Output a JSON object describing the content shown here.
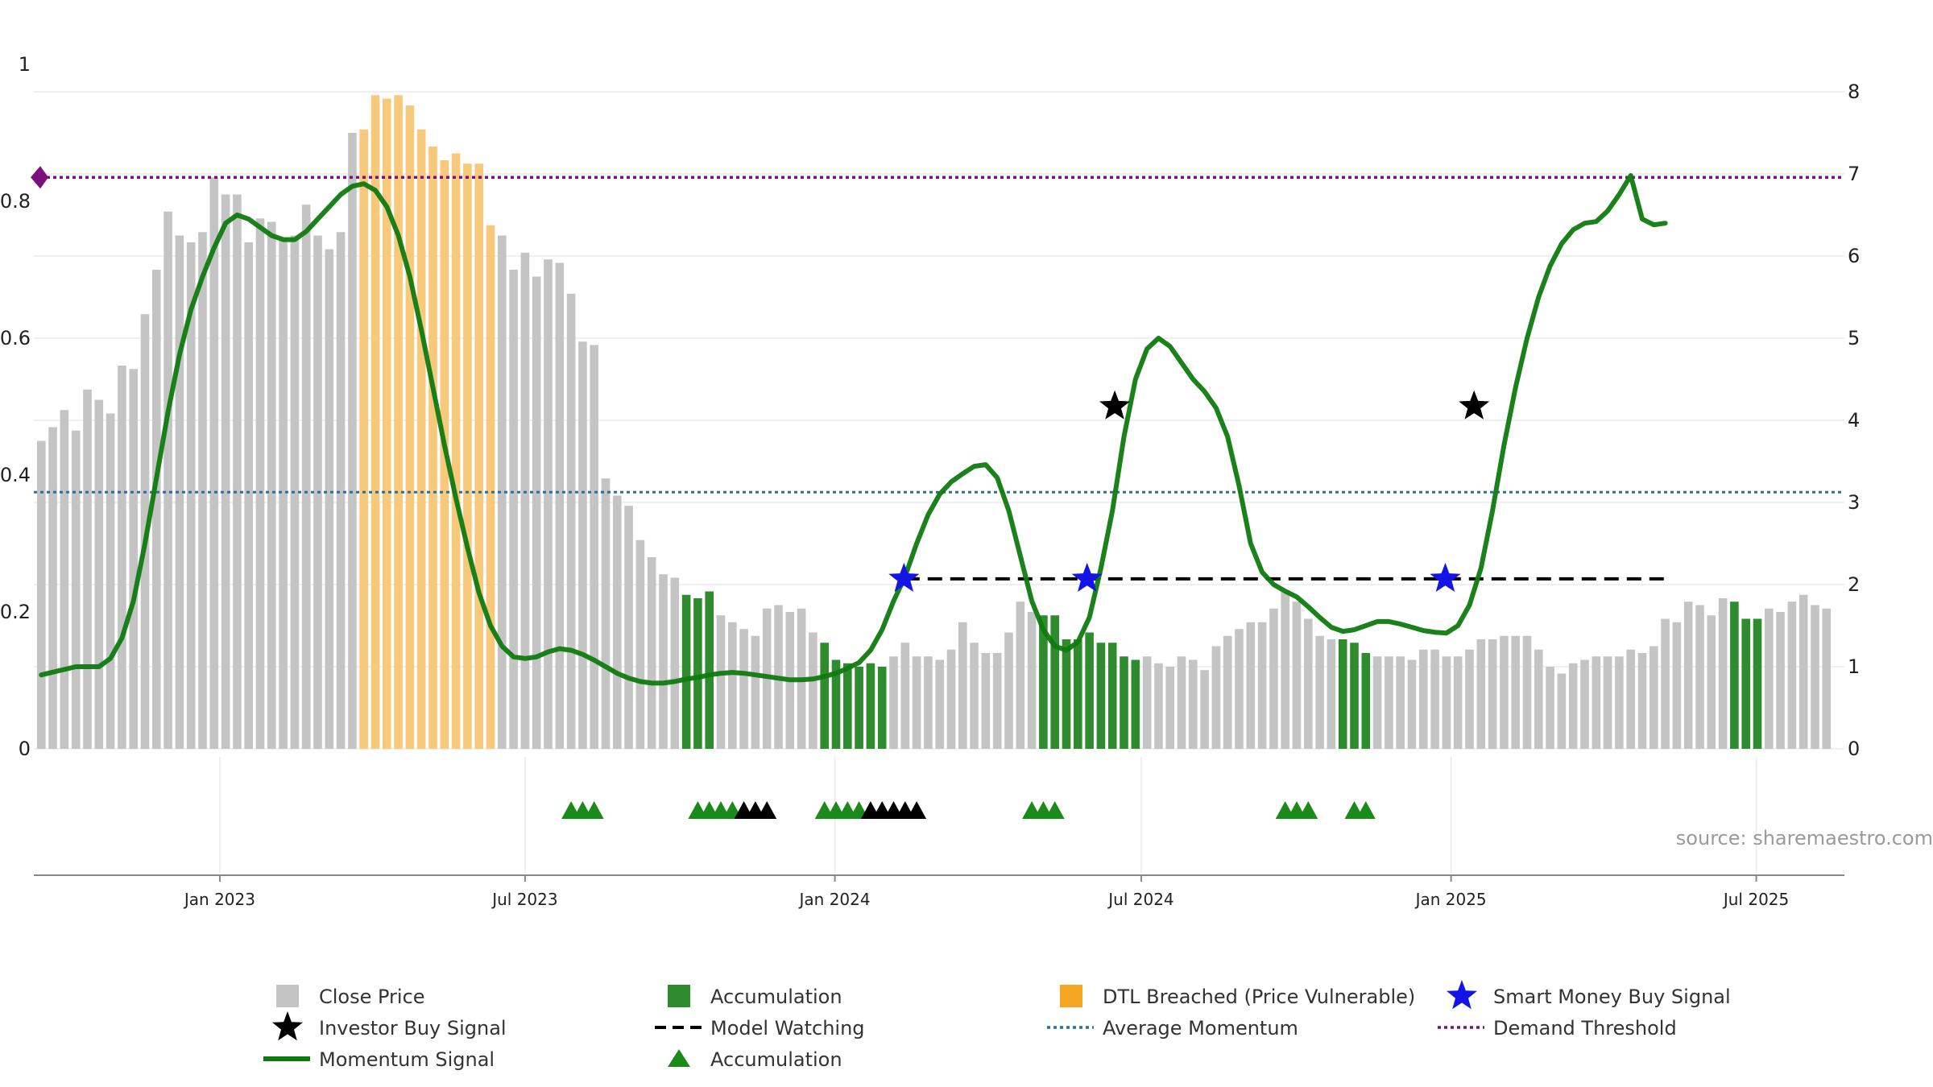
{
  "chart_data": {
    "type": "bar",
    "source": "source: sharemaestro.com",
    "x_ticks": [
      "Jan 2023",
      "Jul 2023",
      "Jan 2024",
      "Jul 2024",
      "Jan 2025",
      "Jul 2025"
    ],
    "x_tick_positions": [
      15.5,
      42,
      68.9,
      95.5,
      122.4,
      148.9
    ],
    "y_left": {
      "range": [
        0,
        1
      ],
      "ticks": [
        "0",
        "0.2",
        "0.4",
        "0.6",
        "0.8",
        "1"
      ]
    },
    "y_right": {
      "range": [
        0,
        8
      ],
      "ticks": [
        "0",
        "1",
        "2",
        "3",
        "4",
        "5",
        "6",
        "7",
        "8"
      ]
    },
    "grid": true,
    "legend_position": "bottom",
    "colors": {
      "close": "#c4c4c4",
      "accumulation": "#2e8b2e",
      "dtl": "#f8c97a",
      "momentum": "#0f7a0f",
      "smart_money": "#1414e6",
      "investor": "#000000",
      "model_watching": "#000000",
      "average_momentum": "#2a6f9e",
      "demand_threshold": "#7d0f7d",
      "accumulation_marker": "#1a8a1a"
    },
    "bar_colors": "GGGGGGGGGGGGGGGGGGGGGGGGGGGGOOOOOOOOOOOOGGGGGGGGGGGGGGGGAAAGGGGGGGGGAAAAAAGGGGGGGGGGGGGAAAAAAAAAGGGGGGGGGGGGGGGGGAAAGGGGGGGGGGGGGGGGGGGGGGGGGGGGGGGAAAGGGGGGGAAGGGGGGGGGGGGGGGGG",
    "close_price": [
      0.45,
      0.47,
      0.495,
      0.465,
      0.525,
      0.51,
      0.49,
      0.56,
      0.555,
      0.635,
      0.7,
      0.785,
      0.75,
      0.74,
      0.755,
      0.835,
      0.81,
      0.81,
      0.74,
      0.775,
      0.77,
      0.745,
      0.75,
      0.795,
      0.75,
      0.73,
      0.755,
      0.9,
      0.905,
      0.955,
      0.95,
      0.955,
      0.94,
      0.905,
      0.88,
      0.86,
      0.87,
      0.855,
      0.855,
      0.765,
      0.75,
      0.7,
      0.725,
      0.69,
      0.715,
      0.71,
      0.665,
      0.595,
      0.59,
      0.395,
      0.37,
      0.355,
      0.305,
      0.28,
      0.255,
      0.25,
      0.225,
      0.22,
      0.23,
      0.195,
      0.185,
      0.175,
      0.165,
      0.205,
      0.21,
      0.2,
      0.205,
      0.17,
      0.155,
      0.13,
      0.125,
      0.12,
      0.125,
      0.12,
      0.135,
      0.155,
      0.135,
      0.135,
      0.13,
      0.145,
      0.185,
      0.155,
      0.14,
      0.14,
      0.17,
      0.215,
      0.2,
      0.195,
      0.195,
      0.16,
      0.16,
      0.17,
      0.155,
      0.155,
      0.135,
      0.13,
      0.135,
      0.125,
      0.12,
      0.135,
      0.13,
      0.115,
      0.15,
      0.165,
      0.175,
      0.185,
      0.185,
      0.205,
      0.23,
      0.215,
      0.19,
      0.165,
      0.16,
      0.16,
      0.155,
      0.14,
      0.135,
      0.135,
      0.135,
      0.13,
      0.145,
      0.145,
      0.135,
      0.135,
      0.145,
      0.16,
      0.16,
      0.165,
      0.165,
      0.165,
      0.145,
      0.12,
      0.11,
      0.125,
      0.13,
      0.135,
      0.135,
      0.135,
      0.145,
      0.14,
      0.15,
      0.19,
      0.185,
      0.215,
      0.21,
      0.195,
      0.22,
      0.215,
      0.19,
      0.19,
      0.205,
      0.2,
      0.215,
      0.225,
      0.21,
      0.205
    ],
    "momentum": [
      [
        0,
        0.9
      ],
      [
        3,
        1.0
      ],
      [
        5,
        1.0
      ],
      [
        6,
        1.1
      ],
      [
        7,
        1.35
      ],
      [
        8,
        1.8
      ],
      [
        9,
        2.5
      ],
      [
        10,
        3.3
      ],
      [
        11,
        4.1
      ],
      [
        12,
        4.8
      ],
      [
        13,
        5.35
      ],
      [
        14,
        5.75
      ],
      [
        15,
        6.1
      ],
      [
        16,
        6.4
      ],
      [
        17,
        6.5
      ],
      [
        18,
        6.45
      ],
      [
        19,
        6.35
      ],
      [
        20,
        6.25
      ],
      [
        21,
        6.2
      ],
      [
        22,
        6.2
      ],
      [
        23,
        6.3
      ],
      [
        24,
        6.45
      ],
      [
        25,
        6.6
      ],
      [
        26,
        6.75
      ],
      [
        27,
        6.85
      ],
      [
        28,
        6.88
      ],
      [
        29,
        6.8
      ],
      [
        30,
        6.6
      ],
      [
        31,
        6.25
      ],
      [
        32,
        5.75
      ],
      [
        33,
        5.1
      ],
      [
        34,
        4.4
      ],
      [
        35,
        3.7
      ],
      [
        36,
        3.05
      ],
      [
        37,
        2.45
      ],
      [
        38,
        1.9
      ],
      [
        39,
        1.5
      ],
      [
        40,
        1.25
      ],
      [
        41,
        1.12
      ],
      [
        42,
        1.1
      ],
      [
        43,
        1.12
      ],
      [
        44,
        1.18
      ],
      [
        45,
        1.22
      ],
      [
        46,
        1.2
      ],
      [
        47,
        1.15
      ],
      [
        48,
        1.08
      ],
      [
        49,
        1.0
      ],
      [
        50,
        0.92
      ],
      [
        51,
        0.86
      ],
      [
        52,
        0.82
      ],
      [
        53,
        0.8
      ],
      [
        54,
        0.8
      ],
      [
        55,
        0.82
      ],
      [
        56,
        0.85
      ],
      [
        57,
        0.87
      ],
      [
        58,
        0.9
      ],
      [
        59,
        0.92
      ],
      [
        60,
        0.93
      ],
      [
        61,
        0.92
      ],
      [
        62,
        0.9
      ],
      [
        63,
        0.88
      ],
      [
        64,
        0.86
      ],
      [
        65,
        0.84
      ],
      [
        66,
        0.84
      ],
      [
        67,
        0.85
      ],
      [
        68,
        0.88
      ],
      [
        69,
        0.92
      ],
      [
        70,
        0.98
      ],
      [
        71,
        1.05
      ],
      [
        72,
        1.2
      ],
      [
        73,
        1.45
      ],
      [
        74,
        1.8
      ],
      [
        75,
        2.1
      ],
      [
        76,
        2.5
      ],
      [
        77,
        2.85
      ],
      [
        78,
        3.1
      ],
      [
        79,
        3.25
      ],
      [
        80,
        3.35
      ],
      [
        81,
        3.44
      ],
      [
        82,
        3.46
      ],
      [
        83,
        3.3
      ],
      [
        84,
        2.9
      ],
      [
        85,
        2.35
      ],
      [
        86,
        1.8
      ],
      [
        87,
        1.45
      ],
      [
        88,
        1.25
      ],
      [
        89,
        1.2
      ],
      [
        90,
        1.3
      ],
      [
        91,
        1.6
      ],
      [
        92,
        2.2
      ],
      [
        93,
        2.9
      ],
      [
        94,
        3.8
      ],
      [
        95,
        4.5
      ],
      [
        96,
        4.87
      ],
      [
        97,
        5.0
      ],
      [
        98,
        4.9
      ],
      [
        99,
        4.7
      ],
      [
        100,
        4.5
      ],
      [
        101,
        4.35
      ],
      [
        102,
        4.15
      ],
      [
        103,
        3.8
      ],
      [
        104,
        3.2
      ],
      [
        105,
        2.5
      ],
      [
        106,
        2.15
      ],
      [
        107,
        2.0
      ],
      [
        108,
        1.92
      ],
      [
        109,
        1.85
      ],
      [
        110,
        1.73
      ],
      [
        111,
        1.6
      ],
      [
        112,
        1.48
      ],
      [
        113,
        1.43
      ],
      [
        114,
        1.45
      ],
      [
        115,
        1.5
      ],
      [
        116,
        1.55
      ],
      [
        117,
        1.55
      ],
      [
        118,
        1.52
      ],
      [
        119,
        1.48
      ],
      [
        120,
        1.44
      ],
      [
        121,
        1.42
      ],
      [
        122,
        1.41
      ],
      [
        123,
        1.5
      ],
      [
        124,
        1.75
      ],
      [
        125,
        2.2
      ],
      [
        126,
        2.9
      ],
      [
        127,
        3.7
      ],
      [
        128,
        4.4
      ],
      [
        129,
        5.0
      ],
      [
        130,
        5.5
      ],
      [
        131,
        5.88
      ],
      [
        132,
        6.15
      ],
      [
        133,
        6.32
      ],
      [
        134,
        6.4
      ],
      [
        135,
        6.42
      ],
      [
        136,
        6.55
      ],
      [
        137,
        6.75
      ],
      [
        138,
        6.98
      ],
      [
        139,
        6.45
      ],
      [
        140,
        6.38
      ],
      [
        141,
        6.4
      ]
    ],
    "smart_money_signals": [
      [
        74.9,
        2.07
      ],
      [
        90.8,
        2.07
      ],
      [
        121.9,
        2.07
      ]
    ],
    "investor_signals": [
      [
        93.2,
        4.17
      ],
      [
        124.4,
        4.17
      ]
    ],
    "model_watching": {
      "from": 75,
      "to": 141,
      "y": 2.07
    },
    "average_momentum": 0.375,
    "demand_threshold": 0.835,
    "accumulation_markers": [
      46,
      47,
      48,
      57,
      58,
      59,
      60,
      68,
      69,
      70,
      71,
      86,
      87,
      88,
      108,
      109,
      110,
      114,
      115
    ],
    "watching_markers": [
      61,
      62,
      63,
      72,
      73,
      74,
      75,
      76
    ],
    "legend": [
      {
        "label": "Close Price",
        "kind": "square-grey"
      },
      {
        "label": "Accumulation",
        "kind": "square-green"
      },
      {
        "label": "DTL Breached (Price Vulnerable)",
        "kind": "square-orange"
      },
      {
        "label": "Smart Money Buy Signal",
        "kind": "star-blue"
      },
      {
        "label": "Investor Buy Signal",
        "kind": "star-black"
      },
      {
        "label": "Model Watching",
        "kind": "dash-black"
      },
      {
        "label": "Average Momentum",
        "kind": "dot-blue"
      },
      {
        "label": "Demand Threshold",
        "kind": "dot-purple"
      },
      {
        "label": "Momentum Signal",
        "kind": "line-green"
      },
      {
        "label": "Accumulation",
        "kind": "triangle-green"
      }
    ]
  }
}
